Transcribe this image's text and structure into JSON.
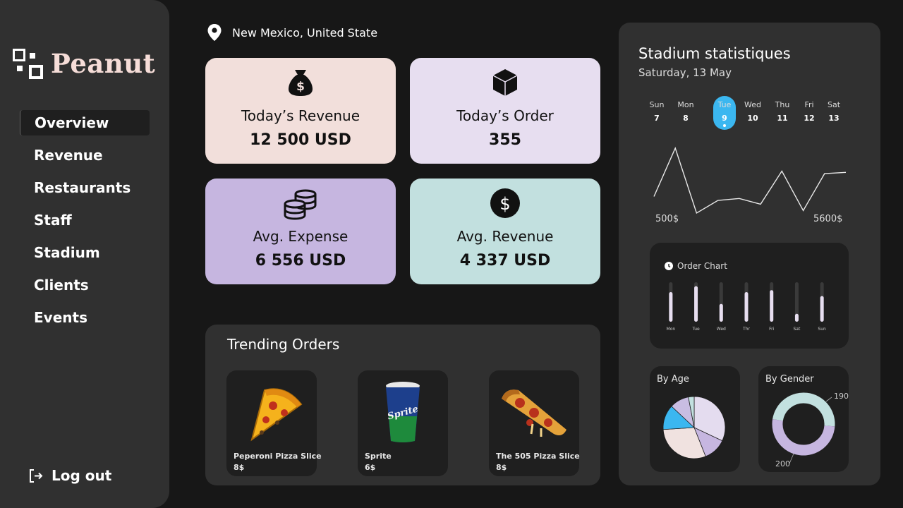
{
  "app": {
    "name": "Peanut"
  },
  "nav": [
    {
      "label": "Overview",
      "active": true
    },
    {
      "label": "Revenue",
      "active": false
    },
    {
      "label": "Restaurants",
      "active": false
    },
    {
      "label": "Staff",
      "active": false
    },
    {
      "label": "Stadium",
      "active": false
    },
    {
      "label": "Clients",
      "active": false
    },
    {
      "label": "Events",
      "active": false
    }
  ],
  "logout_label": "Log out",
  "location": "New Mexico, United State",
  "cards": [
    {
      "label": "Today’s Revenue",
      "value": "12 500 USD",
      "icon": "money-bag-icon",
      "color": "#f2dfdb"
    },
    {
      "label": "Today’s Order",
      "value": "355",
      "icon": "box-icon",
      "color": "#e7def0"
    },
    {
      "label": "Avg. Expense",
      "value": "6 556 USD",
      "icon": "coins-icon",
      "color": "#c6b6e0"
    },
    {
      "label": "Avg. Revenue",
      "value": "4 337 USD",
      "icon": "dollar-icon",
      "color": "#c2e0df"
    }
  ],
  "trending": {
    "title": "Trending Orders",
    "items": [
      {
        "name": "Peperoni  Pizza Slice",
        "price": "8$"
      },
      {
        "name": "Sprite",
        "price": "6$"
      },
      {
        "name": "The 505 Pizza Slice",
        "price": "8$"
      }
    ]
  },
  "stats": {
    "title": "Stadium statistiques",
    "date": "Saturday, 13 May",
    "days": [
      {
        "name": "Sun",
        "num": "7",
        "active": false
      },
      {
        "name": "Mon",
        "num": "8",
        "active": false
      },
      {
        "name": "Tue",
        "num": "9",
        "active": true
      },
      {
        "name": "Wed",
        "num": "10",
        "active": false
      },
      {
        "name": "Thu",
        "num": "11",
        "active": false
      },
      {
        "name": "Fri",
        "num": "12",
        "active": false
      },
      {
        "name": "Sat",
        "num": "13",
        "active": false
      }
    ],
    "line_min_label": "500$",
    "line_max_label": "5600$",
    "order_chart_title": "Order Chart",
    "by_age_title": "By Age",
    "by_gender_title": "By Gender",
    "gender_labels": [
      "190",
      "200"
    ]
  },
  "chart_data": [
    {
      "type": "line",
      "values": [
        1800,
        5600,
        500,
        1500,
        1650,
        1200,
        3800,
        700,
        3600,
        3700
      ]
    },
    {
      "type": "bar",
      "categories": [
        "Mon",
        "Tue",
        "Wed",
        "Thr",
        "Fri",
        "Sat",
        "Sun"
      ],
      "values": [
        0.75,
        0.9,
        0.45,
        0.75,
        0.8,
        0.2,
        0.65
      ]
    },
    {
      "type": "pie",
      "values": [
        32,
        12,
        30,
        13,
        10,
        3
      ],
      "colors": [
        "#e4dcef",
        "#c6b6e0",
        "#f0e2e0",
        "#3bb7f0",
        "#c9bde2",
        "#c2e0df"
      ]
    },
    {
      "type": "pie",
      "categories": [
        "190",
        "200"
      ],
      "values": [
        190,
        200
      ],
      "colors": [
        "#c2e0df",
        "#c6b6e0"
      ]
    }
  ]
}
